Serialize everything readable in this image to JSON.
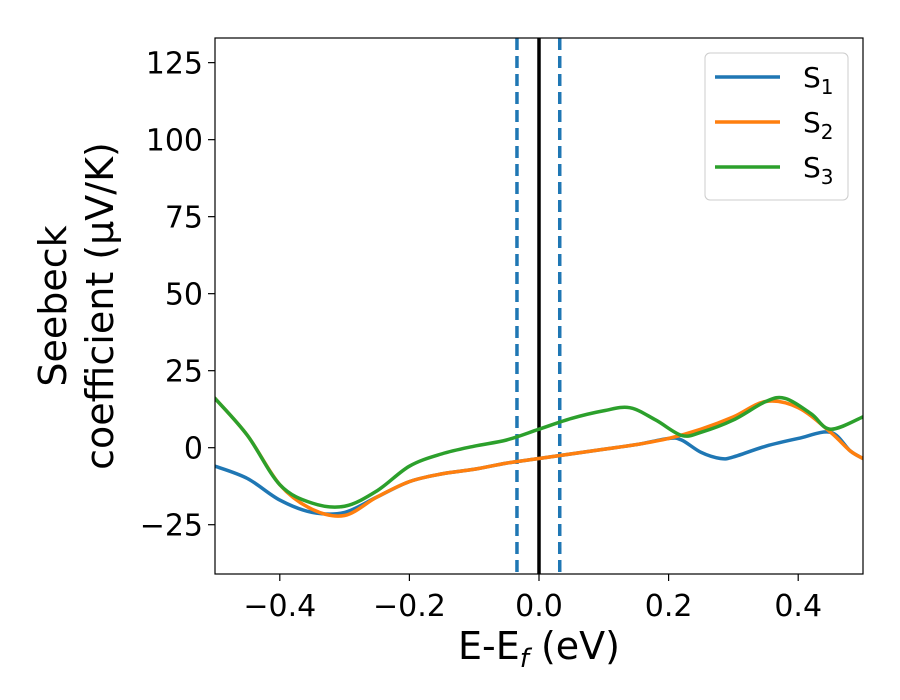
{
  "chart_data": {
    "type": "line",
    "xlabel": "E-E",
    "xlabel_sub": "f",
    "xlabel_unit": " (eV)",
    "ylabel_line1": "Seebeck",
    "ylabel_line2": "coefficient  (μV/K)",
    "xlim": [
      -0.5,
      0.5
    ],
    "ylim": [
      -41,
      133
    ],
    "x_ticks": [
      -0.4,
      -0.2,
      0.0,
      0.2,
      0.4
    ],
    "x_tick_labels": [
      "−0.4",
      "−0.2",
      "0.0",
      "0.2",
      "0.4"
    ],
    "y_ticks": [
      -25,
      0,
      25,
      50,
      75,
      100,
      125
    ],
    "y_tick_labels": [
      "−25",
      "0",
      "25",
      "50",
      "75",
      "100",
      "125"
    ],
    "legend_position": "top-right",
    "series": [
      {
        "name": "S",
        "sub": "1",
        "color": "#1f77b4",
        "x": [
          -0.5,
          -0.45,
          -0.4,
          -0.35,
          -0.3,
          -0.25,
          -0.2,
          -0.15,
          -0.1,
          -0.05,
          0.0,
          0.05,
          0.1,
          0.15,
          0.2,
          0.22,
          0.25,
          0.28,
          0.3,
          0.35,
          0.4,
          0.45,
          0.48,
          0.5
        ],
        "y": [
          -6,
          -10,
          -17,
          -21,
          -21,
          -16,
          -11,
          -8.5,
          -7,
          -5,
          -3.5,
          -2,
          -0.5,
          1,
          3,
          2.5,
          -1.5,
          -3.5,
          -3,
          0.5,
          3,
          5,
          -1,
          -3.5
        ]
      },
      {
        "name": "S",
        "sub": "2",
        "color": "#ff7f0e",
        "x": [
          -0.5,
          -0.45,
          -0.4,
          -0.35,
          -0.3,
          -0.25,
          -0.2,
          -0.15,
          -0.1,
          -0.05,
          0.0,
          0.05,
          0.1,
          0.15,
          0.2,
          0.25,
          0.3,
          0.35,
          0.4,
          0.45,
          0.48,
          0.5
        ],
        "y": [
          16,
          4,
          -12,
          -20,
          -22,
          -16,
          -11,
          -8.5,
          -7,
          -5,
          -3.5,
          -2,
          -0.5,
          1,
          3,
          6,
          10,
          15,
          13,
          5,
          -1,
          -3.5
        ]
      },
      {
        "name": "S",
        "sub": "3",
        "color": "#2ca02c",
        "x": [
          -0.5,
          -0.45,
          -0.4,
          -0.35,
          -0.3,
          -0.25,
          -0.2,
          -0.15,
          -0.1,
          -0.05,
          0.0,
          0.05,
          0.1,
          0.14,
          0.18,
          0.22,
          0.25,
          0.3,
          0.35,
          0.38,
          0.42,
          0.45,
          0.5
        ],
        "y": [
          16,
          4,
          -12,
          -18,
          -19,
          -14,
          -6,
          -2,
          0.5,
          2.5,
          6,
          9.5,
          12,
          13,
          9,
          4,
          5,
          9,
          15,
          16,
          11,
          6,
          10
        ]
      }
    ],
    "vlines": [
      {
        "x": -0.034,
        "style": "dashed",
        "color": "#1f77b4"
      },
      {
        "x": 0.0,
        "style": "solid",
        "color": "#000000"
      },
      {
        "x": 0.032,
        "style": "dashed",
        "color": "#1f77b4"
      }
    ]
  }
}
